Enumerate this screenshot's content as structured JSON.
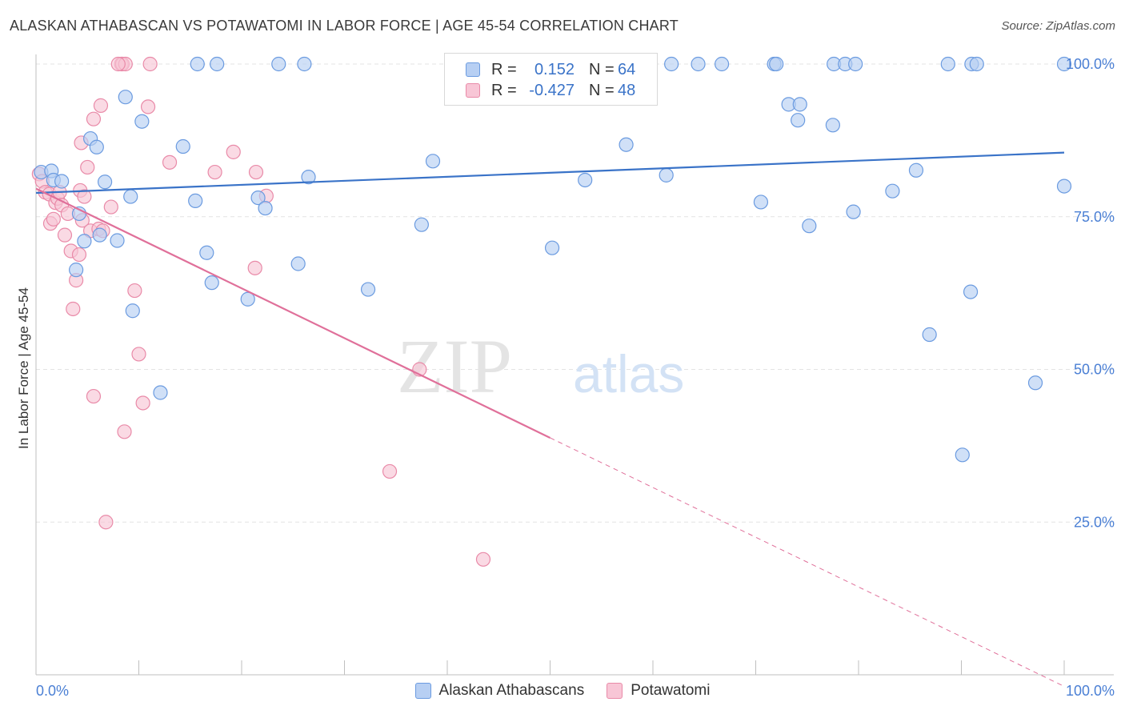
{
  "title": "ALASKAN ATHABASCAN VS POTAWATOMI IN LABOR FORCE | AGE 45-54 CORRELATION CHART",
  "source": "Source: ZipAtlas.com",
  "watermark": {
    "zip": "ZIP",
    "atlas": "atlas"
  },
  "legend": {
    "rows": [
      {
        "r_label": "R =",
        "r_value": "0.152",
        "n_label": "N =",
        "n_value": "64"
      },
      {
        "r_label": "R =",
        "r_value": "-0.427",
        "n_label": "N =",
        "n_value": "48"
      }
    ]
  },
  "bottom_legend": [
    "Alaskan Athabascans",
    "Potawatomi"
  ],
  "colors": {
    "blue_fill": "#b7cff3",
    "blue_stroke": "#6b9be0",
    "blue_line": "#3a73c8",
    "pink_fill": "#f8c6d6",
    "pink_stroke": "#e98aa8",
    "pink_line": "#e0709a",
    "tick_text": "#4a7fd4",
    "grid": "#e3e3e3"
  },
  "chart_data": {
    "type": "scatter",
    "title": "ALASKAN ATHABASCAN VS POTAWATOMI IN LABOR FORCE | AGE 45-54 CORRELATION CHART",
    "xlabel": "",
    "ylabel": "In Labor Force | Age 45-54",
    "xlim": [
      0,
      100
    ],
    "ylim": [
      0,
      100
    ],
    "x_tick_labels": [
      "0.0%",
      "100.0%"
    ],
    "y_tick_labels": [
      "25.0%",
      "50.0%",
      "75.0%",
      "100.0%"
    ],
    "y_ticks": [
      25,
      50,
      75,
      100
    ],
    "grid": true,
    "legend_position": "top-center",
    "series": [
      {
        "name": "Alaskan Athabascans",
        "r": 0.152,
        "n": 64,
        "trend": {
          "x": [
            0,
            100
          ],
          "y": [
            78.9,
            85.5
          ]
        },
        "points": [
          [
            0.5,
            82.3
          ],
          [
            1.5,
            82.5
          ],
          [
            1.7,
            81.0
          ],
          [
            2.5,
            80.8
          ],
          [
            4.2,
            75.5
          ],
          [
            4.7,
            71.0
          ],
          [
            3.9,
            66.3
          ],
          [
            5.3,
            87.8
          ],
          [
            5.9,
            86.4
          ],
          [
            6.2,
            72.0
          ],
          [
            6.7,
            80.7
          ],
          [
            7.9,
            71.1
          ],
          [
            8.7,
            94.6
          ],
          [
            9.2,
            78.3
          ],
          [
            9.4,
            59.6
          ],
          [
            10.3,
            90.6
          ],
          [
            12.1,
            46.2
          ],
          [
            14.3,
            86.5
          ],
          [
            15.5,
            77.6
          ],
          [
            16.6,
            69.1
          ],
          [
            17.1,
            64.2
          ],
          [
            20.6,
            61.5
          ],
          [
            21.6,
            78.1
          ],
          [
            22.3,
            76.4
          ],
          [
            25.5,
            67.3
          ],
          [
            26.5,
            81.5
          ],
          [
            32.3,
            63.1
          ],
          [
            37.5,
            73.7
          ],
          [
            38.6,
            84.1
          ],
          [
            50.2,
            69.9
          ],
          [
            53.4,
            81.0
          ],
          [
            57.4,
            86.8
          ],
          [
            61.3,
            81.8
          ],
          [
            70.5,
            77.4
          ],
          [
            73.2,
            93.4
          ],
          [
            74.1,
            90.8
          ],
          [
            74.3,
            93.4
          ],
          [
            75.2,
            73.5
          ],
          [
            77.5,
            90.0
          ],
          [
            79.5,
            75.8
          ],
          [
            83.3,
            79.2
          ],
          [
            85.6,
            82.6
          ],
          [
            86.9,
            55.7
          ],
          [
            90.1,
            36.0
          ],
          [
            90.9,
            62.7
          ],
          [
            100.0,
            80.0
          ],
          [
            100.0,
            100.0
          ],
          [
            97.2,
            47.8
          ],
          [
            15.7,
            100.0
          ],
          [
            17.6,
            100.0
          ],
          [
            23.6,
            100.0
          ],
          [
            26.1,
            100.0
          ],
          [
            64.4,
            100.0
          ],
          [
            66.7,
            100.0
          ],
          [
            71.8,
            100.0
          ],
          [
            72.0,
            100.0
          ],
          [
            77.6,
            100.0
          ],
          [
            78.7,
            100.0
          ],
          [
            79.7,
            100.0
          ],
          [
            88.7,
            100.0
          ],
          [
            91.0,
            100.0
          ],
          [
            91.5,
            100.0
          ],
          [
            50.9,
            100.0
          ],
          [
            61.8,
            100.0
          ]
        ]
      },
      {
        "name": "Potawatomi",
        "r": -0.427,
        "n": 48,
        "trend": {
          "x": [
            0,
            50
          ],
          "y": [
            79.6,
            38.8
          ]
        },
        "trend_dashed": {
          "x": [
            50,
            100
          ],
          "y": [
            38.8,
            -1.9
          ]
        },
        "points": [
          [
            0.3,
            82.0
          ],
          [
            0.6,
            80.8
          ],
          [
            0.9,
            79.0
          ],
          [
            1.3,
            78.7
          ],
          [
            1.4,
            73.9
          ],
          [
            1.7,
            74.6
          ],
          [
            1.9,
            77.3
          ],
          [
            2.1,
            78.0
          ],
          [
            2.3,
            79.0
          ],
          [
            2.5,
            76.9
          ],
          [
            2.8,
            72.0
          ],
          [
            3.1,
            75.5
          ],
          [
            3.4,
            69.4
          ],
          [
            3.6,
            59.9
          ],
          [
            3.9,
            64.6
          ],
          [
            4.2,
            68.8
          ],
          [
            4.3,
            79.3
          ],
          [
            4.4,
            87.1
          ],
          [
            4.5,
            74.4
          ],
          [
            4.7,
            78.3
          ],
          [
            5.0,
            83.1
          ],
          [
            5.3,
            72.7
          ],
          [
            5.6,
            45.6
          ],
          [
            5.6,
            91.0
          ],
          [
            6.1,
            73.0
          ],
          [
            6.3,
            93.2
          ],
          [
            6.5,
            72.7
          ],
          [
            6.8,
            25.0
          ],
          [
            7.3,
            76.6
          ],
          [
            8.3,
            100.0
          ],
          [
            8.4,
            100.0
          ],
          [
            8.7,
            100.0
          ],
          [
            8.6,
            39.8
          ],
          [
            9.6,
            62.9
          ],
          [
            10.0,
            52.5
          ],
          [
            10.4,
            44.5
          ],
          [
            10.9,
            93.0
          ],
          [
            11.1,
            100.0
          ],
          [
            13.0,
            83.9
          ],
          [
            17.4,
            82.3
          ],
          [
            19.2,
            85.6
          ],
          [
            21.3,
            66.6
          ],
          [
            21.4,
            82.3
          ],
          [
            22.4,
            78.4
          ],
          [
            37.3,
            50.0
          ],
          [
            34.4,
            33.3
          ],
          [
            43.5,
            18.9
          ],
          [
            8.0,
            100.0
          ]
        ]
      }
    ]
  }
}
